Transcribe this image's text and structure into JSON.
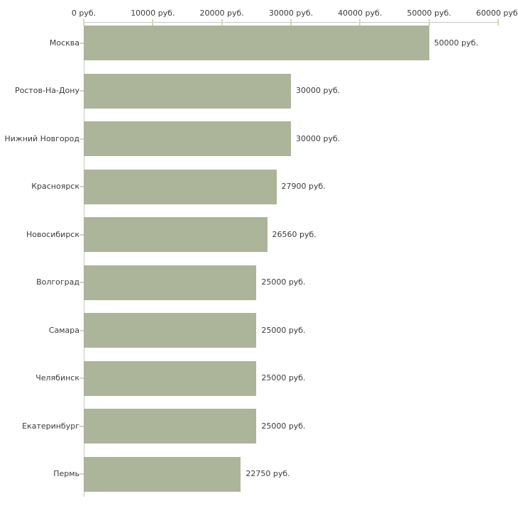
{
  "chart_data": {
    "type": "bar",
    "orientation": "horizontal",
    "title": "",
    "xlabel": "",
    "ylabel": "",
    "unit": "руб.",
    "xlim": [
      0,
      60000
    ],
    "grid": false,
    "legend": "none",
    "categories": [
      "Москва",
      "Ростов-На-Дону",
      "Нижний Новгород",
      "Красноярск",
      "Новосибирск",
      "Волгоград",
      "Самара",
      "Челябинск",
      "Екатеринбург",
      "Пермь"
    ],
    "values": [
      50000,
      30000,
      30000,
      27900,
      26560,
      25000,
      25000,
      25000,
      25000,
      22750
    ],
    "value_labels": [
      "50000 руб.",
      "30000 руб.",
      "30000 руб.",
      "27900 руб.",
      "26560 руб.",
      "25000 руб.",
      "25000 руб.",
      "25000 руб.",
      "25000 руб.",
      "22750 руб."
    ],
    "x_ticks": [
      {
        "value": 0,
        "label": "0 руб."
      },
      {
        "value": 10000,
        "label": "10000 руб."
      },
      {
        "value": 20000,
        "label": "20000 руб."
      },
      {
        "value": 30000,
        "label": "30000 руб."
      },
      {
        "value": 40000,
        "label": "40000 руб."
      },
      {
        "value": 50000,
        "label": "50000 руб."
      },
      {
        "value": 60000,
        "label": "60000 руб."
      }
    ],
    "colors": {
      "bar": "#acb49a",
      "axis": "#c6c6c6",
      "tick": "#d6d9ae",
      "text": "#3c3c3c",
      "background": "#ffffff"
    }
  }
}
